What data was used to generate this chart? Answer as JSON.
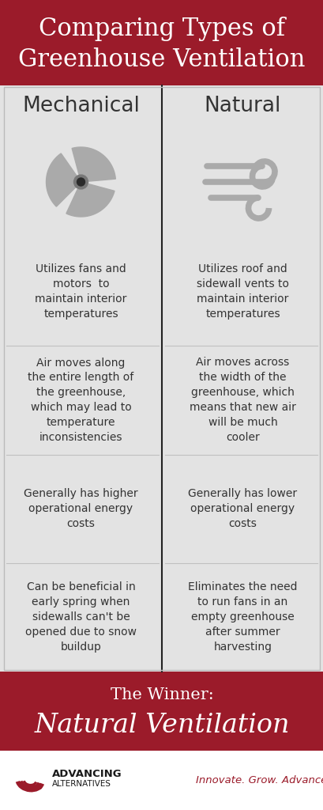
{
  "title_line1": "Comparing Types of",
  "title_line2": "Greenhouse Ventilation",
  "title_bg": "#9b1b2a",
  "title_text_color": "#ffffff",
  "col1_header": "Mechanical",
  "col2_header": "Natural",
  "body_bg": "#e3e3e3",
  "col_text_color": "#333333",
  "divider_color": "#222222",
  "mechanical_points": [
    "Utilizes fans and\nmotors  to\nmaintain interior\ntemperatures",
    "Air moves along\nthe entire length of\nthe greenhouse,\nwhich may lead to\ntemperature\ninconsistencies",
    "Generally has higher\noperational energy\ncosts",
    "Can be beneficial in\nearly spring when\nsidewalls can't be\nopened due to snow\nbuildup"
  ],
  "natural_points": [
    "Utilizes roof and\nsidewall vents to\nmaintain interior\ntemperatures",
    "Air moves across\nthe width of the\ngreenhouse, which\nmeans that new air\nwill be much\ncooler",
    "Generally has lower\noperational energy\ncosts",
    "Eliminates the need\nto run fans in an\nempty greenhouse\nafter summer\nharvesting"
  ],
  "winner_bg": "#9b1b2a",
  "winner_text_color": "#ffffff",
  "winner_line1": "The Winner:",
  "winner_line2": "Natural Ventilation",
  "tagline": "Innovate. Grow. Advance.",
  "tagline_color": "#9b1b2a",
  "logo_color": "#9b1b2a",
  "icon_color": "#aaaaaa",
  "icon_dark": "#777777",
  "fan_center_color": "#555555",
  "fan_center_dot": "#2a2a2a"
}
